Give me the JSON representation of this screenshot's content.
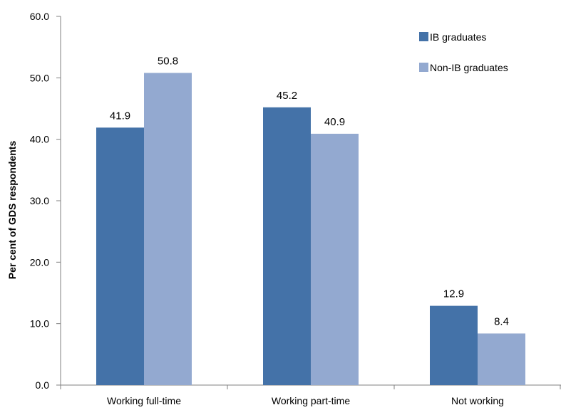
{
  "chart_data": {
    "type": "bar",
    "title": "",
    "xlabel": "",
    "ylabel": "Per cent of GDS respondents",
    "categories": [
      "Working full-time",
      "Working part-time",
      "Not working"
    ],
    "series": [
      {
        "name": "IB graduates",
        "values": [
          41.9,
          45.2,
          12.9
        ],
        "color": "#4472a8"
      },
      {
        "name": "Non-IB graduates",
        "values": [
          50.8,
          40.9,
          8.4
        ],
        "color": "#93a9d0"
      }
    ],
    "ylim": [
      0,
      60
    ],
    "yticks": [
      "0.0",
      "10.0",
      "20.0",
      "30.0",
      "40.0",
      "50.0",
      "60.0"
    ],
    "data_labels": [
      [
        "41.9",
        "45.2",
        "12.9"
      ],
      [
        "50.8",
        "40.9",
        "8.4"
      ]
    ],
    "grid": false,
    "legend_position": "top-right"
  }
}
